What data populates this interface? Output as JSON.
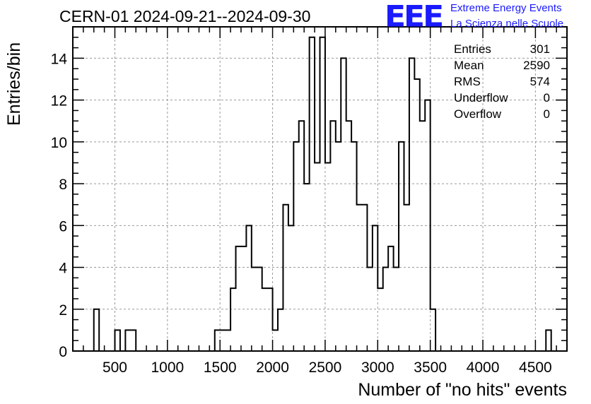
{
  "header": {
    "title": "CERN-01 2024-09-21--2024-09-30",
    "logo_text": "EEE",
    "logo_line1": "Extreme Energy Events",
    "logo_line2": "La Scienza nelle Scuole"
  },
  "stats": [
    {
      "label": "Entries",
      "value": "301"
    },
    {
      "label": "Mean",
      "value": "2590"
    },
    {
      "label": "RMS",
      "value": "574"
    },
    {
      "label": "Underflow",
      "value": "0"
    },
    {
      "label": "Overflow",
      "value": "0"
    }
  ],
  "colors": {
    "logo": "#1a1aff",
    "line": "#000000",
    "grid": "#999999"
  },
  "chart_data": {
    "type": "bar",
    "histogram": true,
    "xlabel": "Number of \"no hits\" events",
    "ylabel": "Entries/bin",
    "xlim": [
      100,
      4800
    ],
    "ylim": [
      0,
      15.5
    ],
    "x_ticks": [
      500,
      1000,
      1500,
      2000,
      2500,
      3000,
      3500,
      4000,
      4500
    ],
    "y_ticks": [
      0,
      2,
      4,
      6,
      8,
      10,
      12,
      14
    ],
    "grid": true,
    "bin_width": 50,
    "bins": [
      {
        "x": 300,
        "v": 2
      },
      {
        "x": 500,
        "v": 1
      },
      {
        "x": 600,
        "v": 1
      },
      {
        "x": 650,
        "v": 1
      },
      {
        "x": 1450,
        "v": 1
      },
      {
        "x": 1500,
        "v": 1
      },
      {
        "x": 1550,
        "v": 1
      },
      {
        "x": 1600,
        "v": 3
      },
      {
        "x": 1650,
        "v": 5
      },
      {
        "x": 1700,
        "v": 5
      },
      {
        "x": 1750,
        "v": 6
      },
      {
        "x": 1800,
        "v": 4
      },
      {
        "x": 1850,
        "v": 4
      },
      {
        "x": 1900,
        "v": 3
      },
      {
        "x": 1950,
        "v": 3
      },
      {
        "x": 2000,
        "v": 1
      },
      {
        "x": 2050,
        "v": 2
      },
      {
        "x": 2100,
        "v": 7
      },
      {
        "x": 2150,
        "v": 6
      },
      {
        "x": 2200,
        "v": 10
      },
      {
        "x": 2250,
        "v": 11
      },
      {
        "x": 2300,
        "v": 8
      },
      {
        "x": 2350,
        "v": 15
      },
      {
        "x": 2400,
        "v": 9
      },
      {
        "x": 2450,
        "v": 15
      },
      {
        "x": 2500,
        "v": 9
      },
      {
        "x": 2550,
        "v": 11
      },
      {
        "x": 2600,
        "v": 10
      },
      {
        "x": 2650,
        "v": 14
      },
      {
        "x": 2700,
        "v": 11
      },
      {
        "x": 2750,
        "v": 10
      },
      {
        "x": 2800,
        "v": 7
      },
      {
        "x": 2850,
        "v": 7
      },
      {
        "x": 2900,
        "v": 4
      },
      {
        "x": 2950,
        "v": 6
      },
      {
        "x": 3000,
        "v": 3
      },
      {
        "x": 3050,
        "v": 4
      },
      {
        "x": 3100,
        "v": 5
      },
      {
        "x": 3150,
        "v": 4
      },
      {
        "x": 3200,
        "v": 10
      },
      {
        "x": 3250,
        "v": 7
      },
      {
        "x": 3300,
        "v": 14
      },
      {
        "x": 3350,
        "v": 13
      },
      {
        "x": 3400,
        "v": 11
      },
      {
        "x": 3450,
        "v": 12
      },
      {
        "x": 3500,
        "v": 2
      },
      {
        "x": 4600,
        "v": 1
      }
    ]
  }
}
